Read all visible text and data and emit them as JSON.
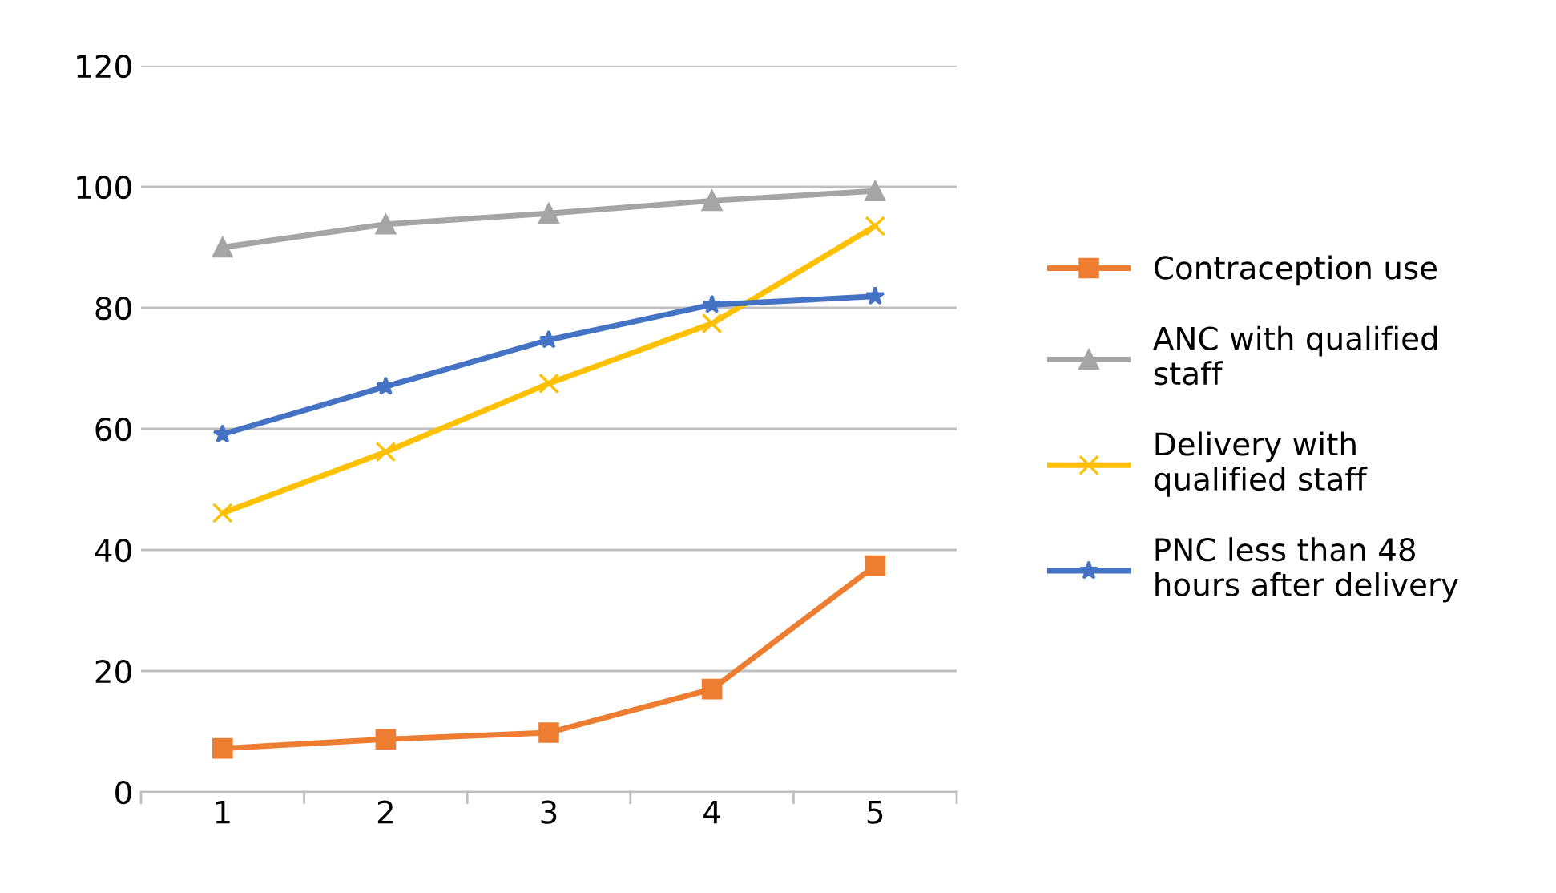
{
  "chart_data": {
    "type": "line",
    "categories": [
      "1",
      "2",
      "3",
      "4",
      "5"
    ],
    "series": [
      {
        "name": "Contraception use",
        "color": "#ed7d31",
        "marker": "square",
        "values": [
          7.2,
          8.7,
          9.8,
          17,
          37.4
        ]
      },
      {
        "name": "ANC with qualified staff",
        "color": "#a5a5a5",
        "marker": "triangle",
        "values": [
          90,
          93.8,
          95.6,
          97.7,
          99.3
        ]
      },
      {
        "name": "Delivery with qualified staff",
        "color": "#ffc000",
        "marker": "cross",
        "values": [
          46.1,
          56.2,
          67.5,
          77.4,
          93.5
        ]
      },
      {
        "name": "PNC less than 48 hours after delivery",
        "color": "#4472c4",
        "marker": "star",
        "values": [
          59.1,
          67,
          74.7,
          80.5,
          81.9
        ]
      }
    ],
    "ylim": [
      0,
      120
    ],
    "yticks": [
      0,
      20,
      40,
      60,
      80,
      100,
      120
    ],
    "grid": "y",
    "legend": "right",
    "line_style": "solid"
  }
}
